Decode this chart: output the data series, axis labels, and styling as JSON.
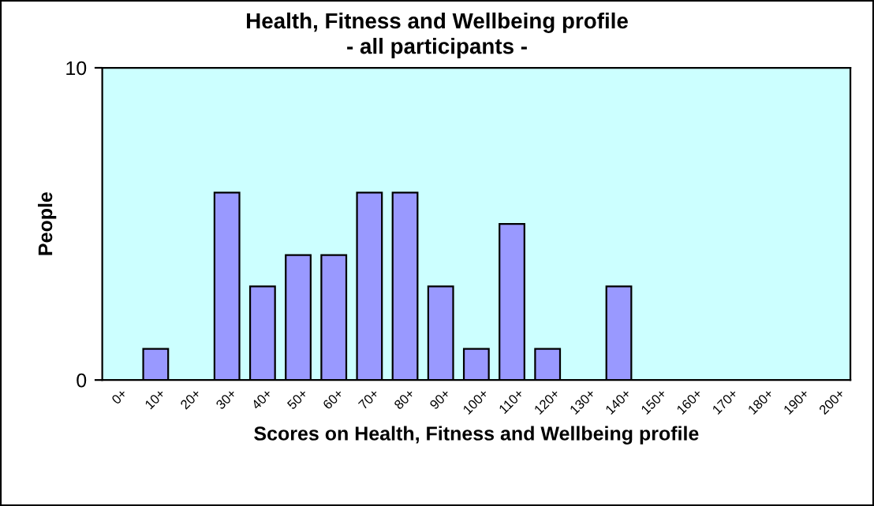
{
  "chart_data": {
    "type": "bar",
    "title": "Health, Fitness and Wellbeing profile",
    "subtitle": "- all participants -",
    "xlabel": "Scores on Health, Fitness and Wellbeing profile",
    "ylabel": "People",
    "categories": [
      "0+",
      "10+",
      "20+",
      "30+",
      "40+",
      "50+",
      "60+",
      "70+",
      "80+",
      "90+",
      "100+",
      "110+",
      "120+",
      "130+",
      "140+",
      "150+",
      "160+",
      "170+",
      "180+",
      "190+",
      "200+"
    ],
    "values": [
      0,
      1,
      0,
      6,
      3,
      4,
      4,
      6,
      6,
      3,
      1,
      5,
      1,
      0,
      3,
      0,
      0,
      0,
      0,
      0,
      0
    ],
    "color": "#9999ff",
    "ylim": [
      0,
      10
    ],
    "yticks": [
      0,
      10
    ],
    "grid": false,
    "legend": false
  }
}
